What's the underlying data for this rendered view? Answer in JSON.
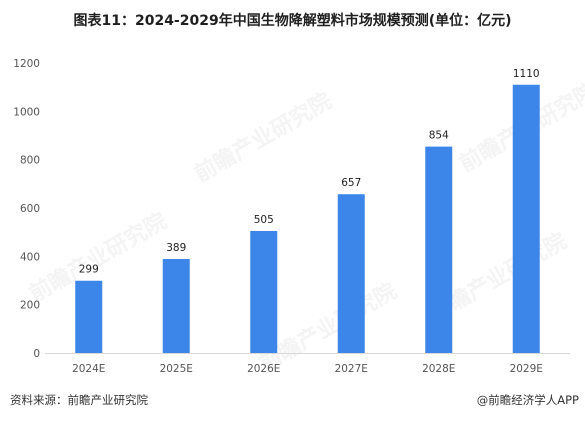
{
  "header": {
    "title": "图表11：2024-2029年中国生物降解塑料市场规模预测(单位：亿元)"
  },
  "footer": {
    "source": "资料来源：前瞻产业研究院",
    "brand": "@前瞻经济学人APP"
  },
  "watermark": {
    "text": "前瞻产业研究院"
  },
  "colors": {
    "bar": "#3b86e8",
    "grid": "#d9d9d9",
    "axis_text": "#555555",
    "label_text": "#222222"
  },
  "chart_data": {
    "type": "bar",
    "title": "图表11：2024-2029年中国生物降解塑料市场规模预测(单位：亿元)",
    "categories": [
      "2024E",
      "2025E",
      "2026E",
      "2027E",
      "2028E",
      "2029E"
    ],
    "values": [
      299,
      389,
      505,
      657,
      854,
      1110
    ],
    "data_labels": [
      "299",
      "389",
      "505",
      "657",
      "854",
      "1110"
    ],
    "yticks": [
      "0",
      "200",
      "400",
      "600",
      "800",
      "1000",
      "1200"
    ],
    "ylim": [
      0,
      1200
    ],
    "xlabel": "",
    "ylabel": "",
    "grid": false,
    "legend": "none"
  }
}
